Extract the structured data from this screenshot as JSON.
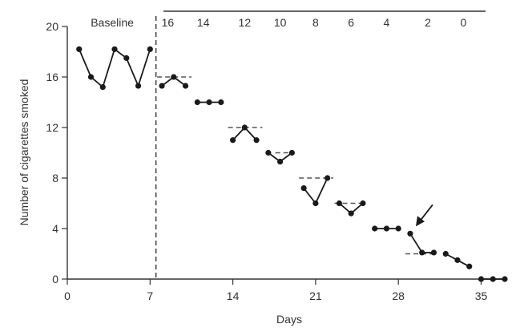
{
  "chart_data": {
    "type": "line",
    "title": "",
    "xlabel": "Days",
    "ylabel": "Number of cigarettes smoked",
    "xlim": [
      0,
      37
    ],
    "ylim": [
      0,
      20
    ],
    "x_ticks": [
      0,
      7,
      14,
      21,
      28,
      35
    ],
    "y_ticks": [
      0,
      4,
      8,
      12,
      16,
      20
    ],
    "baseline_label": "Baseline",
    "phase_change_day": 7.5,
    "top_axis_labels": [
      {
        "label": "16",
        "day": 8.5
      },
      {
        "label": "14",
        "day": 11.5
      },
      {
        "label": "12",
        "day": 15
      },
      {
        "label": "10",
        "day": 18
      },
      {
        "label": "8",
        "day": 21
      },
      {
        "label": "6",
        "day": 24
      },
      {
        "label": "4",
        "day": 27
      },
      {
        "label": "2",
        "day": 30.5
      },
      {
        "label": "0",
        "day": 33.5
      }
    ],
    "segments": [
      {
        "points": [
          [
            1,
            18.2
          ],
          [
            2,
            16
          ],
          [
            3,
            15.2
          ],
          [
            4,
            18.2
          ],
          [
            5,
            17.5
          ],
          [
            6,
            15.3
          ],
          [
            7,
            18.2
          ]
        ]
      },
      {
        "points": [
          [
            8,
            15.3
          ],
          [
            9,
            16
          ],
          [
            10,
            15.3
          ]
        ]
      },
      {
        "points": [
          [
            11,
            14
          ],
          [
            12,
            14
          ],
          [
            13,
            14
          ]
        ]
      },
      {
        "points": [
          [
            14,
            11
          ],
          [
            15,
            12
          ],
          [
            16,
            11
          ]
        ]
      },
      {
        "points": [
          [
            17,
            10
          ],
          [
            18,
            9.3
          ],
          [
            19,
            10
          ]
        ]
      },
      {
        "points": [
          [
            20,
            7.2
          ],
          [
            21,
            6
          ],
          [
            22,
            8
          ]
        ]
      },
      {
        "points": [
          [
            23,
            6
          ],
          [
            24,
            5.2
          ],
          [
            25,
            6
          ]
        ]
      },
      {
        "points": [
          [
            26,
            4
          ],
          [
            27,
            4
          ],
          [
            28,
            4
          ]
        ]
      },
      {
        "points": [
          [
            29,
            3.6
          ],
          [
            30,
            2.1
          ],
          [
            31,
            2.1
          ]
        ]
      },
      {
        "points": [
          [
            32,
            2
          ],
          [
            33,
            1.5
          ],
          [
            34,
            1
          ]
        ]
      },
      {
        "points": [
          [
            35,
            0
          ],
          [
            36,
            0
          ],
          [
            37,
            0
          ]
        ]
      }
    ],
    "criteria": [
      {
        "value": 16,
        "from": 7.6,
        "to": 10.5
      },
      {
        "value": 12,
        "from": 13.6,
        "to": 16.5
      },
      {
        "value": 10,
        "from": 17.6,
        "to": 19
      },
      {
        "value": 8,
        "from": 19.6,
        "to": 22.5
      },
      {
        "value": 6,
        "from": 22.6,
        "to": 24.8
      },
      {
        "value": 2,
        "from": 28.6,
        "to": 31
      }
    ],
    "arrow_target": [
      29,
      3.6
    ]
  }
}
